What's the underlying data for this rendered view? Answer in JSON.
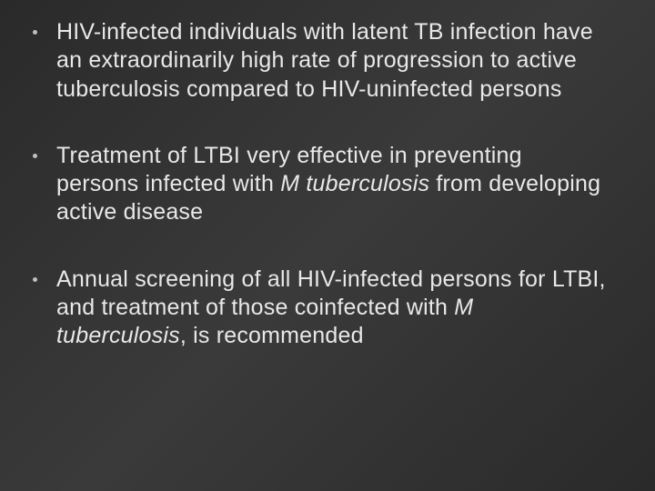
{
  "slide": {
    "background_gradient": [
      "#2a2a2a",
      "#3a3a3a",
      "#2a2a2a"
    ],
    "text_color": "#e8e8e8",
    "bullet_color": "#c0c0c0",
    "font_size_pt": 25,
    "bullets": [
      {
        "segments": [
          {
            "text": "HIV-infected individuals with latent TB infection have an extraordinarily high rate of progression to active tuberculosis compared to HIV-uninfected persons",
            "italic": false
          }
        ]
      },
      {
        "segments": [
          {
            "text": "Treatment of LTBI very effective in preventing persons infected with ",
            "italic": false
          },
          {
            "text": "M tuberculosis",
            "italic": true
          },
          {
            "text": " from developing active disease",
            "italic": false
          }
        ]
      },
      {
        "segments": [
          {
            "text": "Annual screening of all HIV-infected persons for LTBI, and treatment of those coinfected with ",
            "italic": false
          },
          {
            "text": "M tuberculosis",
            "italic": true
          },
          {
            "text": ", is recommended",
            "italic": false
          }
        ]
      }
    ]
  }
}
